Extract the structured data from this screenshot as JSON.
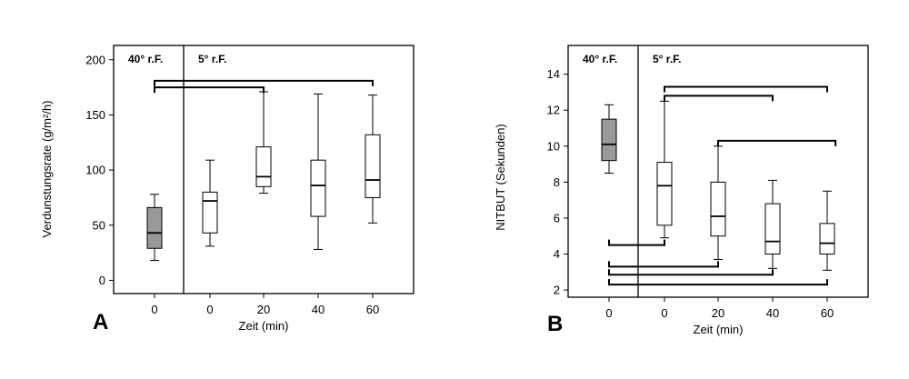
{
  "chart_data": [
    {
      "type": "box",
      "panel_label": "A",
      "xlabel": "Zeit (min)",
      "ylabel": "Verdunstungsrate (g/m²/h)",
      "ylim": [
        -12,
        213
      ],
      "yticks": [
        0,
        50,
        100,
        150,
        200
      ],
      "conditions": [
        "40° r.F.",
        "5° r.F."
      ],
      "categories": [
        "0",
        "0",
        "20",
        "40",
        "60"
      ],
      "boxes": [
        {
          "min": 18,
          "q1": 29,
          "median": 43,
          "q3": 66,
          "max": 78,
          "fill": "#999999"
        },
        {
          "min": 31,
          "q1": 43,
          "median": 72,
          "q3": 80,
          "max": 109,
          "fill": "#ffffff"
        },
        {
          "min": 79,
          "q1": 85,
          "median": 94,
          "q3": 121,
          "max": 171,
          "fill": "#ffffff"
        },
        {
          "min": 28,
          "q1": 58,
          "median": 86,
          "q3": 109,
          "max": 169,
          "fill": "#ffffff"
        },
        {
          "min": 52,
          "q1": 75,
          "median": 91,
          "q3": 132,
          "max": 168,
          "fill": "#ffffff"
        }
      ],
      "brackets": [
        {
          "from": 0,
          "to": 2,
          "y": 175,
          "dir": "down"
        },
        {
          "from": 0,
          "to": 4,
          "y": 181,
          "dir": "down"
        }
      ]
    },
    {
      "type": "box",
      "panel_label": "B",
      "xlabel": "Zeit (min)",
      "ylabel": "NITBUT (Sekunden)",
      "ylim": [
        1.6,
        15.6
      ],
      "yticks": [
        2,
        4,
        6,
        8,
        10,
        12,
        14
      ],
      "conditions": [
        "40° r.F.",
        "5° r.F."
      ],
      "categories": [
        "0",
        "0",
        "20",
        "40",
        "60"
      ],
      "boxes": [
        {
          "min": 8.5,
          "q1": 9.2,
          "median": 10.1,
          "q3": 11.5,
          "max": 12.3,
          "fill": "#999999"
        },
        {
          "min": 4.9,
          "q1": 5.6,
          "median": 7.8,
          "q3": 9.1,
          "max": 12.5,
          "fill": "#ffffff"
        },
        {
          "min": 3.7,
          "q1": 5.0,
          "median": 6.1,
          "q3": 8.0,
          "max": 10.0,
          "fill": "#ffffff"
        },
        {
          "min": 3.2,
          "q1": 4.0,
          "median": 4.7,
          "q3": 6.8,
          "max": 8.1,
          "fill": "#ffffff"
        },
        {
          "min": 3.1,
          "q1": 4.0,
          "median": 4.6,
          "q3": 5.7,
          "max": 7.5,
          "fill": "#ffffff"
        }
      ],
      "brackets": [
        {
          "from": 1,
          "to": 4,
          "y": 13.3,
          "dir": "down"
        },
        {
          "from": 1,
          "to": 3,
          "y": 12.8,
          "dir": "down"
        },
        {
          "from": 2,
          "to": 4.15,
          "y": 10.3,
          "dir": "down"
        },
        {
          "from": 0,
          "to": 1,
          "y": 4.5,
          "dir": "up"
        },
        {
          "from": 0,
          "to": 2,
          "y": 3.3,
          "dir": "up"
        },
        {
          "from": 0,
          "to": 3,
          "y": 2.85,
          "dir": "up"
        },
        {
          "from": 0,
          "to": 4,
          "y": 2.3,
          "dir": "up"
        }
      ]
    }
  ]
}
